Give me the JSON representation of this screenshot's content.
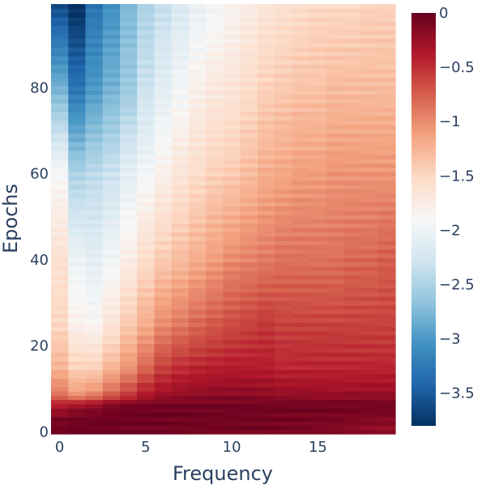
{
  "chart_data": {
    "type": "heatmap",
    "title": "",
    "xlabel": "Frequency",
    "ylabel": "Epochs",
    "x_range": [
      -0.5,
      19.5
    ],
    "y_range": [
      -0.5,
      99.5
    ],
    "x_ticks": [
      0,
      5,
      10,
      15
    ],
    "x_tick_labels": [
      "0",
      "5",
      "10",
      "15"
    ],
    "y_ticks": [
      0,
      20,
      40,
      60,
      80
    ],
    "y_tick_labels": [
      "0",
      "20",
      "40",
      "60",
      "80"
    ],
    "x_count": 20,
    "y_count": 100,
    "colorscale": "RdBu",
    "colors": {
      "scale_stops": [
        "#053061",
        "#2166ac",
        "#4393c3",
        "#92c5de",
        "#d1e5f0",
        "#f7f7f7",
        "#fddbc7",
        "#f4a582",
        "#d6604d",
        "#b2182b",
        "#67001f"
      ],
      "axis_text": "#2a3f5f"
    },
    "zrange": [
      -3.8,
      0
    ],
    "colorbar": {
      "ticks": [
        0,
        -0.5,
        -1,
        -1.5,
        -2,
        -2.5,
        -3,
        -3.5
      ],
      "tick_labels": [
        "0",
        "−0.5",
        "−1",
        "−1.5",
        "−2",
        "−2.5",
        "−3",
        "−3.5"
      ]
    },
    "grid": false,
    "legend": "none",
    "z_profile": {
      "epochs": [
        0,
        3,
        6,
        9,
        15,
        25,
        40,
        60,
        80,
        99
      ],
      "rows": [
        [
          -0.05,
          -0.02,
          -0.02,
          -0.03,
          -0.04,
          -0.05,
          -0.06,
          -0.06,
          -0.06,
          -0.07,
          -0.07,
          -0.07,
          -0.08,
          -0.08,
          -0.1,
          -0.12,
          -0.15,
          -0.18,
          -0.2,
          -0.22
        ],
        [
          -0.1,
          -0.05,
          -0.05,
          -0.04,
          -0.04,
          -0.03,
          -0.04,
          -0.05,
          -0.05,
          -0.06,
          -0.06,
          -0.06,
          -0.07,
          -0.08,
          -0.08,
          -0.09,
          -0.1,
          -0.12,
          -0.14,
          -0.16
        ],
        [
          -0.35,
          -0.25,
          -0.2,
          -0.1,
          -0.06,
          -0.05,
          -0.05,
          -0.04,
          -0.04,
          -0.04,
          -0.04,
          -0.04,
          -0.05,
          -0.05,
          -0.05,
          -0.05,
          -0.05,
          -0.05,
          -0.05,
          -0.05
        ],
        [
          -0.9,
          -1.1,
          -1.0,
          -0.8,
          -0.6,
          -0.4,
          -0.3,
          -0.25,
          -0.22,
          -0.2,
          -0.2,
          -0.2,
          -0.22,
          -0.25,
          -0.25,
          -0.25,
          -0.25,
          -0.25,
          -0.25,
          -0.25
        ],
        [
          -1.25,
          -1.45,
          -1.45,
          -1.25,
          -1.05,
          -0.8,
          -0.6,
          -0.5,
          -0.45,
          -0.42,
          -0.4,
          -0.4,
          -0.4,
          -0.45,
          -0.45,
          -0.45,
          -0.45,
          -0.45,
          -0.45,
          -0.45
        ],
        [
          -1.5,
          -1.8,
          -1.85,
          -1.65,
          -1.4,
          -1.2,
          -1.0,
          -0.9,
          -0.8,
          -0.72,
          -0.65,
          -0.6,
          -0.55,
          -0.6,
          -0.6,
          -0.6,
          -0.6,
          -0.6,
          -0.6,
          -0.6
        ],
        [
          -1.6,
          -2.0,
          -2.1,
          -1.95,
          -1.75,
          -1.55,
          -1.4,
          -1.3,
          -1.2,
          -1.1,
          -1.0,
          -0.95,
          -0.9,
          -0.85,
          -0.85,
          -0.85,
          -0.85,
          -0.8,
          -0.8,
          -0.75
        ],
        [
          -1.9,
          -2.5,
          -2.4,
          -2.3,
          -2.1,
          -1.95,
          -1.8,
          -1.65,
          -1.55,
          -1.45,
          -1.4,
          -1.3,
          -1.2,
          -1.15,
          -1.1,
          -1.1,
          -1.05,
          -1.05,
          -1.05,
          -1.05
        ],
        [
          -2.8,
          -3.3,
          -3.0,
          -2.8,
          -2.6,
          -2.3,
          -2.1,
          -1.95,
          -1.8,
          -1.7,
          -1.65,
          -1.55,
          -1.45,
          -1.4,
          -1.35,
          -1.35,
          -1.3,
          -1.3,
          -1.3,
          -1.3
        ],
        [
          -3.6,
          -3.8,
          -3.3,
          -3.05,
          -2.75,
          -2.5,
          -2.35,
          -2.2,
          -2.05,
          -1.95,
          -1.85,
          -1.75,
          -1.65,
          -1.6,
          -1.55,
          -1.5,
          -1.5,
          -1.5,
          -1.45,
          -1.45
        ]
      ]
    }
  }
}
